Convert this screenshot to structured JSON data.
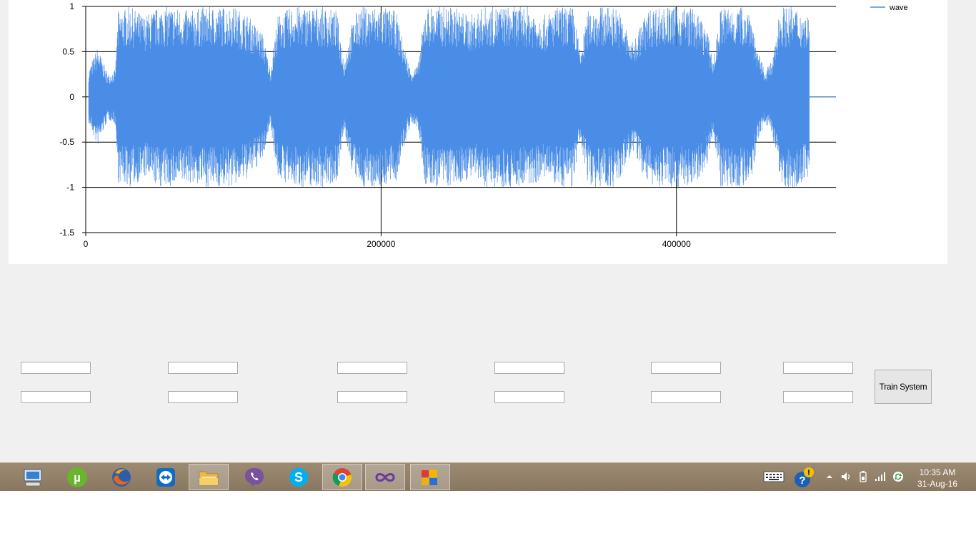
{
  "chart_data": {
    "type": "line",
    "series": [
      {
        "name": "wave"
      }
    ],
    "x_ticks": [
      "0",
      "200000",
      "400000"
    ],
    "y_ticks": [
      "1",
      "0.5",
      "0",
      "-0.5",
      "-1",
      "-1.5"
    ],
    "xlim": [
      0,
      508000
    ],
    "ylim": [
      -1.5,
      1
    ],
    "x_data_extent": [
      2000,
      490000
    ],
    "grid": true,
    "legend_placement": "top-right",
    "series_color": "#4a8de6",
    "envelope": {
      "x": [
        2000,
        8000,
        15000,
        20000,
        22000,
        30000,
        40000,
        50000,
        60000,
        70000,
        80000,
        90000,
        100000,
        110000,
        120000,
        125000,
        130000,
        140000,
        150000,
        160000,
        170000,
        175000,
        180000,
        185000,
        190000,
        200000,
        210000,
        215000,
        220000,
        225000,
        230000,
        240000,
        250000,
        260000,
        270000,
        280000,
        290000,
        300000,
        310000,
        320000,
        330000,
        335000,
        340000,
        345000,
        350000,
        360000,
        370000,
        380000,
        385000,
        390000,
        400000,
        410000,
        420000,
        425000,
        430000,
        440000,
        450000,
        455000,
        460000,
        465000,
        470000,
        480000,
        490000
      ],
      "amplitude": [
        0.3,
        0.55,
        0.25,
        0.3,
        0.95,
        1,
        0.9,
        1,
        1,
        0.95,
        1,
        1,
        1,
        0.9,
        0.7,
        0.3,
        0.9,
        1,
        1,
        1,
        0.95,
        0.4,
        0.8,
        1,
        1,
        1,
        0.95,
        0.6,
        0.3,
        0.35,
        1,
        1,
        1,
        0.9,
        1,
        1,
        1,
        1,
        0.9,
        1,
        1,
        0.5,
        0.95,
        1,
        1,
        1,
        0.6,
        0.95,
        1,
        1,
        1,
        1,
        0.8,
        0.4,
        1,
        1,
        1,
        0.5,
        0.3,
        0.4,
        1,
        1,
        0.9
      ]
    }
  },
  "form": {
    "train_button_label": "Train System"
  },
  "taskbar": {
    "apps": [
      "computer-icon",
      "utorrent-icon",
      "firefox-icon",
      "teamviewer-icon",
      "file-explorer-icon",
      "viber-icon",
      "skype-icon",
      "chrome-icon",
      "visual-studio-icon",
      "winforms-app-icon"
    ],
    "clock_time": "10:35 AM",
    "clock_date": "31-Aug-16"
  }
}
